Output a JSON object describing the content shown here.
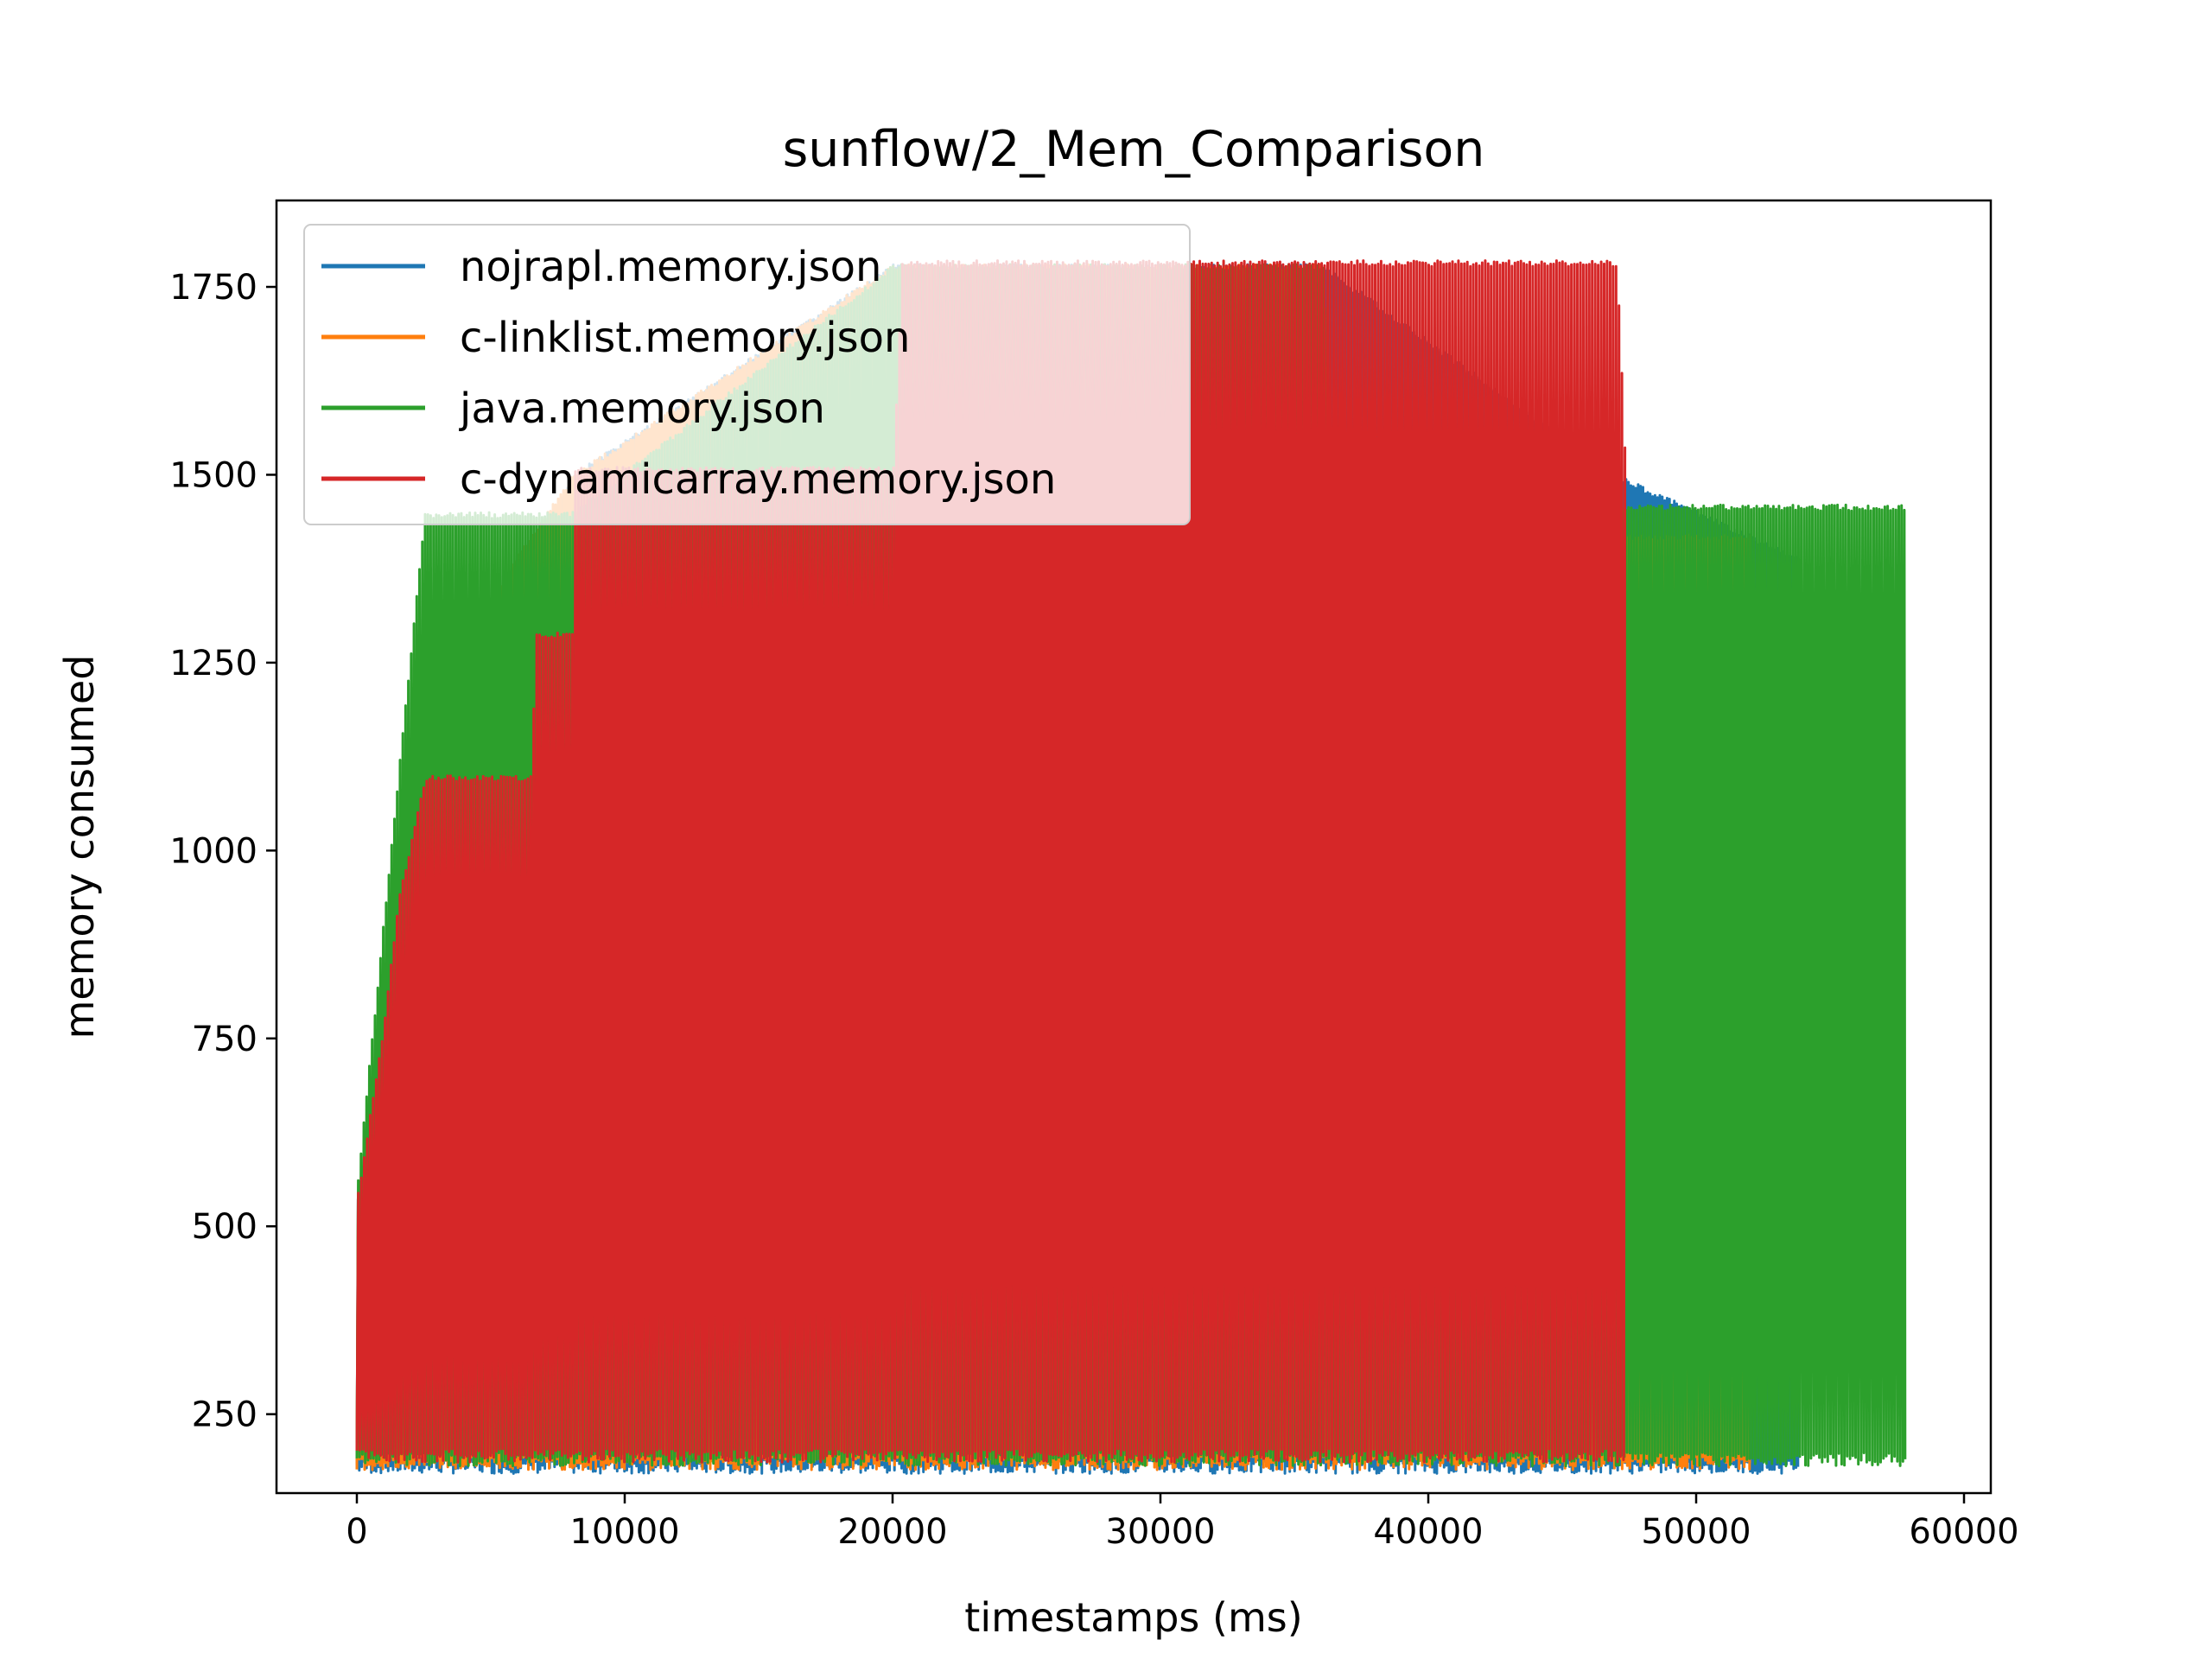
{
  "chart_data": {
    "type": "line",
    "title": "sunflow/2_Mem_Comparison",
    "xlabel": "timestamps (ms)",
    "ylabel": "memory consumed",
    "xlim": [
      -3000,
      61000
    ],
    "ylim": [
      145,
      1865
    ],
    "xticks": [
      0,
      10000,
      20000,
      30000,
      40000,
      50000,
      60000
    ],
    "yticks": [
      250,
      500,
      750,
      1000,
      1250,
      1500,
      1750
    ],
    "xtick_labels": [
      "0",
      "10000",
      "20000",
      "30000",
      "40000",
      "50000",
      "60000"
    ],
    "ytick_labels": [
      "250",
      "500",
      "750",
      "1000",
      "1250",
      "1500",
      "1750"
    ],
    "grid": false,
    "legend_position": "upper-left",
    "series": [
      {
        "name": "nojrapl.memory.json",
        "color": "#1f77b4",
        "x_range": [
          0,
          53800
        ],
        "trough": 180,
        "envelope": [
          [
            0,
            540
          ],
          [
            1200,
            820
          ],
          [
            2000,
            1100
          ],
          [
            8000,
            1500
          ],
          [
            20000,
            1780
          ],
          [
            36000,
            1780
          ],
          [
            47000,
            1500
          ],
          [
            53800,
            1390
          ]
        ]
      },
      {
        "name": "c-linklist.memory.json",
        "color": "#ff7f0e",
        "x_range": [
          0,
          52000
        ],
        "trough": 185,
        "envelope": [
          [
            0,
            540
          ],
          [
            600,
            670
          ],
          [
            1000,
            780
          ],
          [
            2500,
            1210
          ],
          [
            8000,
            1500
          ],
          [
            20000,
            1780
          ],
          [
            36000,
            1780
          ],
          [
            36500,
            1420
          ],
          [
            52000,
            1420
          ]
        ]
      },
      {
        "name": "java.memory.json",
        "color": "#2ca02c",
        "x_range": [
          0,
          57800
        ],
        "trough": 190,
        "envelope": [
          [
            0,
            565
          ],
          [
            1500,
            1100
          ],
          [
            2500,
            1450
          ],
          [
            8000,
            1450
          ],
          [
            20000,
            1780
          ],
          [
            36000,
            1780
          ],
          [
            36500,
            1460
          ],
          [
            57800,
            1460
          ]
        ]
      },
      {
        "name": "c-dynamicarray.memory.json",
        "color": "#d62728",
        "x_range": [
          0,
          47300
        ],
        "trough": 195,
        "envelope": [
          [
            0,
            545
          ],
          [
            1000,
            780
          ],
          [
            1500,
            935
          ],
          [
            2500,
            1100
          ],
          [
            6500,
            1100
          ],
          [
            6600,
            1290
          ],
          [
            8000,
            1290
          ],
          [
            8100,
            1510
          ],
          [
            20000,
            1510
          ],
          [
            20300,
            1785
          ],
          [
            47000,
            1785
          ],
          [
            47300,
            1530
          ]
        ]
      }
    ]
  }
}
